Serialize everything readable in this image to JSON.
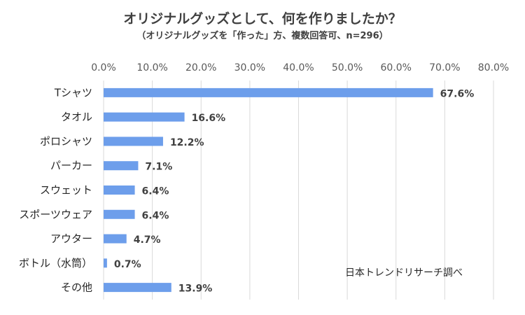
{
  "chart_data": {
    "type": "bar",
    "orientation": "horizontal",
    "title": "オリジナルグッズとして、何を作りましたか？",
    "subtitle": "（オリジナルグッズを「作った」方、複数回答可、n=296）",
    "categories": [
      "Tシャツ",
      "タオル",
      "ポロシャツ",
      "パーカー",
      "スウェット",
      "スポーツウェア",
      "アウター",
      "ボトル（水筒）",
      "その他"
    ],
    "values": [
      67.6,
      16.6,
      12.2,
      7.1,
      6.4,
      6.4,
      4.7,
      0.7,
      13.9
    ],
    "value_labels": [
      "67.6%",
      "16.6%",
      "12.2%",
      "7.1%",
      "6.4%",
      "6.4%",
      "4.7%",
      "0.7%",
      "13.9%"
    ],
    "xlim": [
      0,
      80
    ],
    "xticks": [
      0,
      10,
      20,
      30,
      40,
      50,
      60,
      70,
      80
    ],
    "xtick_labels": [
      "0.0%",
      "10.0%",
      "20.0%",
      "30.0%",
      "40.0%",
      "50.0%",
      "60.0%",
      "70.0%",
      "80.0%"
    ],
    "x_axis_position": "top",
    "grid": true,
    "bar_color": "#6d9eeb",
    "source_note": "日本トレンドリサーチ調べ"
  }
}
